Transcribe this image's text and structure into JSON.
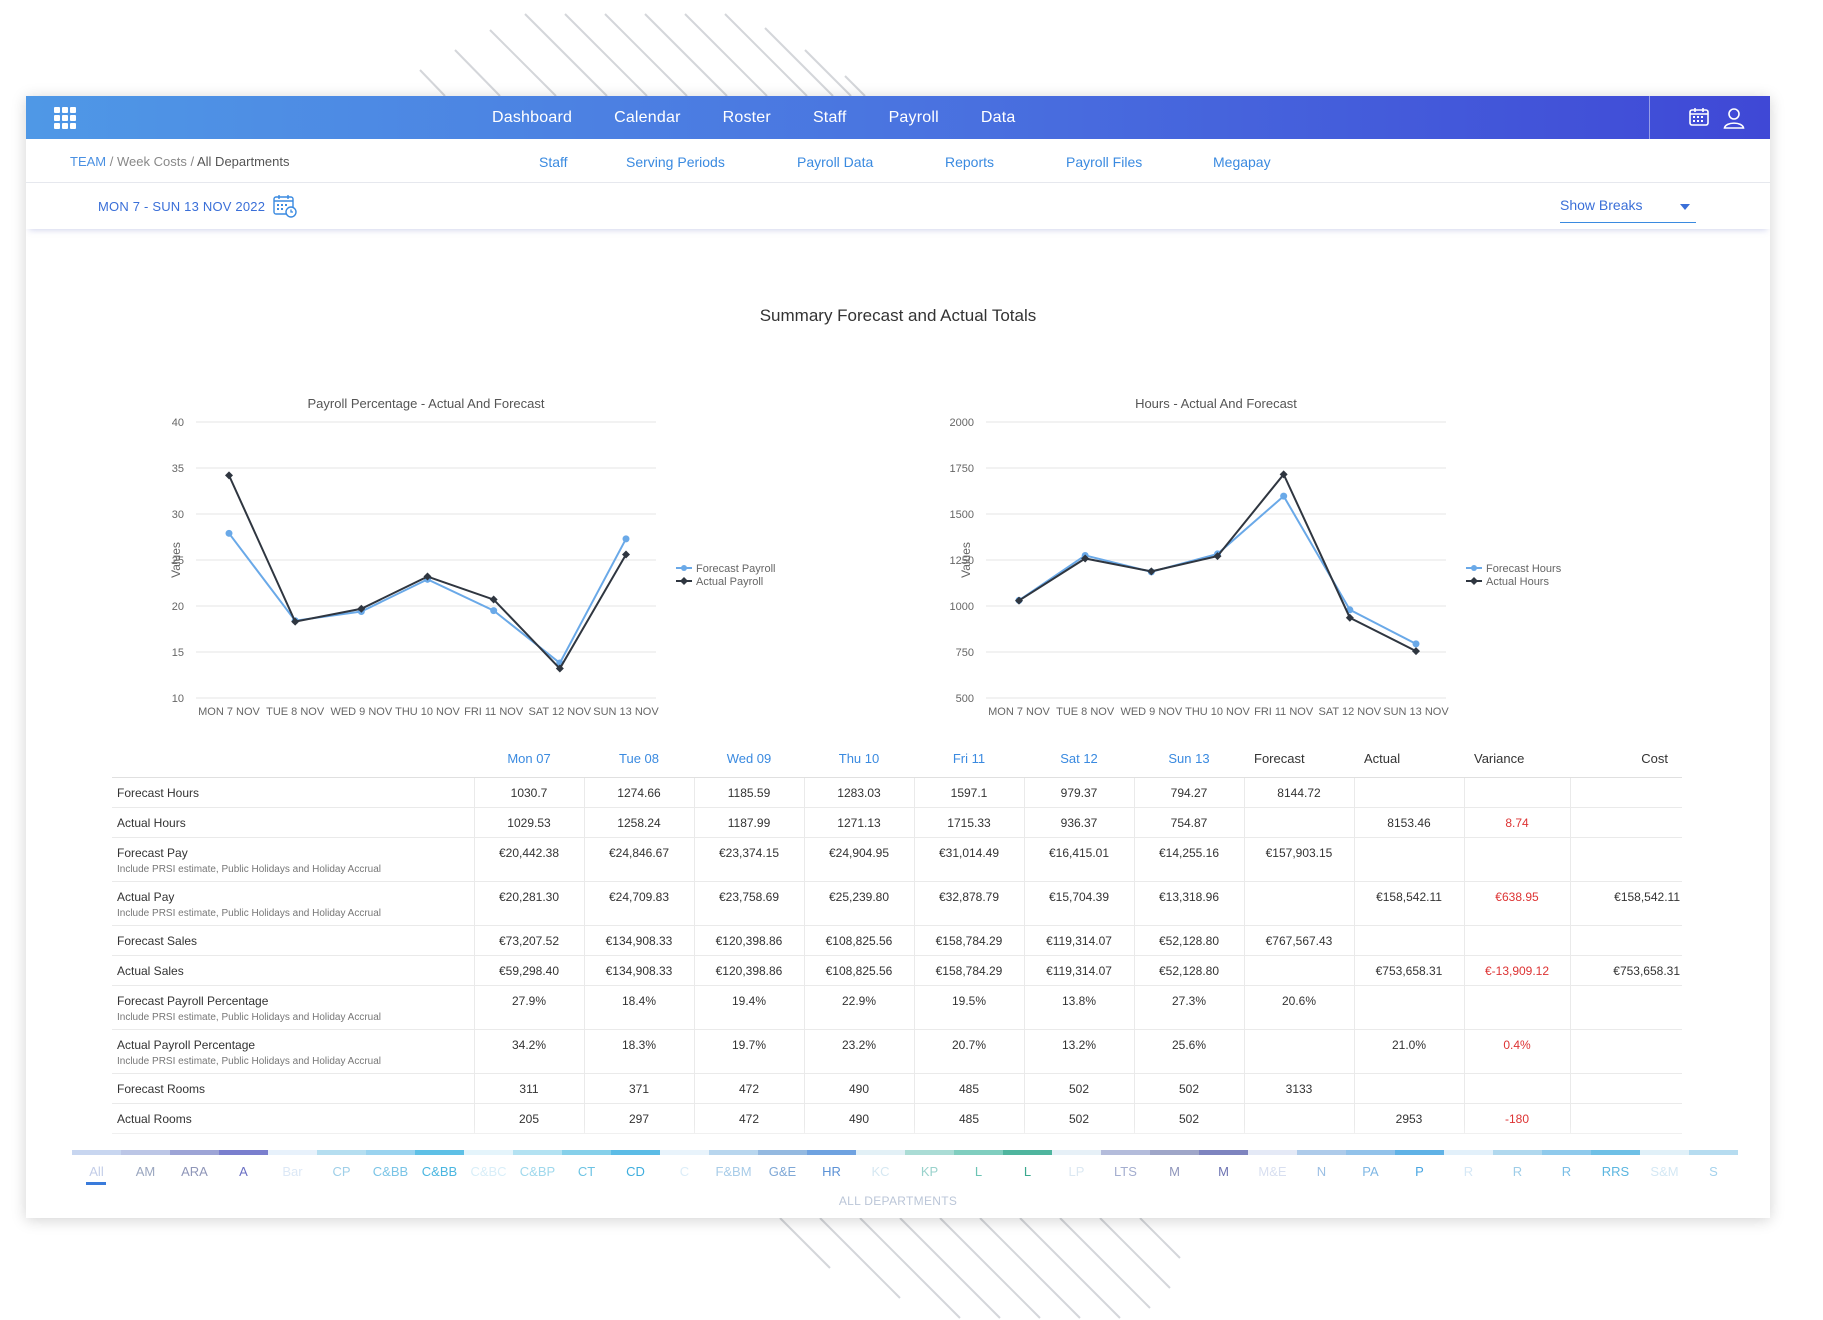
{
  "nav": {
    "items": [
      "Dashboard",
      "Calendar",
      "Roster",
      "Staff",
      "Payroll",
      "Data"
    ]
  },
  "breadcrumb": {
    "team": "TEAM",
    "sep1": "/",
    "middle": "Week Costs",
    "sep2": "/",
    "current": "All Departments"
  },
  "subnav": [
    "Staff",
    "Serving Periods",
    "Payroll Data",
    "Reports",
    "Payroll Files",
    "Megapay"
  ],
  "date_range": "MON 7 - SUN 13 NOV 2022",
  "show_breaks": "Show Breaks",
  "summary_title": "Summary Forecast and Actual Totals",
  "chart_data": [
    {
      "type": "line",
      "title": "Payroll Percentage - Actual And Forecast",
      "ylabel": "Values",
      "xlabel": "",
      "categories": [
        "MON 7 NOV",
        "TUE 8 NOV",
        "WED 9 NOV",
        "THU 10 NOV",
        "FRI 11 NOV",
        "SAT 12 NOV",
        "SUN 13 NOV"
      ],
      "yticks": [
        10,
        15,
        20,
        25,
        30,
        35,
        40
      ],
      "ylim": [
        10,
        40
      ],
      "grid": true,
      "legend": "right",
      "series": [
        {
          "name": "Forecast Payroll",
          "color": "#6aa9e8",
          "marker": "circle",
          "values": [
            27.9,
            18.4,
            19.4,
            22.9,
            19.5,
            13.8,
            27.3
          ]
        },
        {
          "name": "Actual Payroll",
          "color": "#2f3640",
          "marker": "diamond",
          "values": [
            34.2,
            18.3,
            19.7,
            23.2,
            20.7,
            13.2,
            25.6
          ]
        }
      ]
    },
    {
      "type": "line",
      "title": "Hours - Actual And Forecast",
      "ylabel": "Values",
      "xlabel": "",
      "categories": [
        "MON 7 NOV",
        "TUE 8 NOV",
        "WED 9 NOV",
        "THU 10 NOV",
        "FRI 11 NOV",
        "SAT 12 NOV",
        "SUN 13 NOV"
      ],
      "yticks": [
        500,
        750,
        1000,
        1250,
        1500,
        1750,
        2000
      ],
      "ylim": [
        500,
        2000
      ],
      "grid": true,
      "legend": "right",
      "series": [
        {
          "name": "Forecast Hours",
          "color": "#6aa9e8",
          "marker": "circle",
          "values": [
            1030.7,
            1274.66,
            1185.59,
            1283.03,
            1597.1,
            979.37,
            794.27
          ]
        },
        {
          "name": "Actual Hours",
          "color": "#2f3640",
          "marker": "diamond",
          "values": [
            1029.53,
            1258.24,
            1187.99,
            1271.13,
            1715.33,
            936.37,
            754.87
          ]
        }
      ]
    }
  ],
  "table": {
    "headers": {
      "days": [
        "Mon 07",
        "Tue 08",
        "Wed 09",
        "Thu 10",
        "Fri 11",
        "Sat 12",
        "Sun 13"
      ],
      "forecast": "Forecast",
      "actual": "Actual",
      "variance": "Variance",
      "cost": "Cost"
    },
    "rows": [
      {
        "label": "Forecast Hours",
        "sub": "",
        "days": [
          "1030.7",
          "1274.66",
          "1185.59",
          "1283.03",
          "1597.1",
          "979.37",
          "794.27"
        ],
        "forecast": "8144.72",
        "actual": "",
        "variance": "",
        "cost": ""
      },
      {
        "label": "Actual Hours",
        "sub": "",
        "days": [
          "1029.53",
          "1258.24",
          "1187.99",
          "1271.13",
          "1715.33",
          "936.37",
          "754.87"
        ],
        "forecast": "",
        "actual": "8153.46",
        "variance": "8.74",
        "cost": ""
      },
      {
        "label": "Forecast Pay",
        "sub": "Include PRSI estimate, Public Holidays and Holiday Accrual",
        "days": [
          "€20,442.38",
          "€24,846.67",
          "€23,374.15",
          "€24,904.95",
          "€31,014.49",
          "€16,415.01",
          "€14,255.16"
        ],
        "forecast": "€157,903.15",
        "actual": "",
        "variance": "",
        "cost": ""
      },
      {
        "label": "Actual Pay",
        "sub": "Include PRSI estimate, Public Holidays and Holiday Accrual",
        "days": [
          "€20,281.30",
          "€24,709.83",
          "€23,758.69",
          "€25,239.80",
          "€32,878.79",
          "€15,704.39",
          "€13,318.96"
        ],
        "forecast": "",
        "actual": "€158,542.11",
        "variance": "€638.95",
        "cost": "€158,542.11"
      },
      {
        "label": "Forecast Sales",
        "sub": "",
        "days": [
          "€73,207.52",
          "€134,908.33",
          "€120,398.86",
          "€108,825.56",
          "€158,784.29",
          "€119,314.07",
          "€52,128.80"
        ],
        "forecast": "€767,567.43",
        "actual": "",
        "variance": "",
        "cost": ""
      },
      {
        "label": "Actual Sales",
        "sub": "",
        "days": [
          "€59,298.40",
          "€134,908.33",
          "€120,398.86",
          "€108,825.56",
          "€158,784.29",
          "€119,314.07",
          "€52,128.80"
        ],
        "forecast": "",
        "actual": "€753,658.31",
        "variance": "€-13,909.12",
        "cost": "€753,658.31"
      },
      {
        "label": "Forecast Payroll Percentage",
        "sub": "Include PRSI estimate, Public Holidays and Holiday Accrual",
        "days": [
          "27.9%",
          "18.4%",
          "19.4%",
          "22.9%",
          "19.5%",
          "13.8%",
          "27.3%"
        ],
        "forecast": "20.6%",
        "actual": "",
        "variance": "",
        "cost": ""
      },
      {
        "label": "Actual Payroll Percentage",
        "sub": "Include PRSI estimate, Public Holidays and Holiday Accrual",
        "days": [
          "34.2%",
          "18.3%",
          "19.7%",
          "23.2%",
          "20.7%",
          "13.2%",
          "25.6%"
        ],
        "forecast": "",
        "actual": "21.0%",
        "variance": "0.4%",
        "cost": ""
      },
      {
        "label": "Forecast Rooms",
        "sub": "",
        "days": [
          "311",
          "371",
          "472",
          "490",
          "485",
          "502",
          "502"
        ],
        "forecast": "3133",
        "actual": "",
        "variance": "",
        "cost": ""
      },
      {
        "label": "Actual Rooms",
        "sub": "",
        "days": [
          "205",
          "297",
          "472",
          "490",
          "485",
          "502",
          "502"
        ],
        "forecast": "",
        "actual": "2953",
        "variance": "-180",
        "cost": ""
      }
    ]
  },
  "departments": {
    "caption": "ALL DEPARTMENTS",
    "items": [
      {
        "code": "All",
        "color": "#c3cde8",
        "stripe": "#c8d6f0",
        "active": true
      },
      {
        "code": "AM",
        "color": "#9aa6bf",
        "stripe": "#bcc6e6"
      },
      {
        "code": "ARA",
        "color": "#8f96b8",
        "stripe": "#9da4d6"
      },
      {
        "code": "A",
        "color": "#6a6fc4",
        "stripe": "#7a7fce"
      },
      {
        "code": "Bar",
        "color": "#dce8f6",
        "stripe": "#e7f1fb"
      },
      {
        "code": "CP",
        "color": "#9fcfe8",
        "stripe": "#b5def0"
      },
      {
        "code": "C&BB",
        "color": "#7ac4e6",
        "stripe": "#9ad3ef"
      },
      {
        "code": "C&BB",
        "color": "#4ab6e0",
        "stripe": "#5ec0e6"
      },
      {
        "code": "C&BC",
        "color": "#d8eef8",
        "stripe": "#e4f4fb"
      },
      {
        "code": "C&BP",
        "color": "#9fd8ec",
        "stripe": "#b3e2f2"
      },
      {
        "code": "CT",
        "color": "#6cc3e3",
        "stripe": "#86d0ea"
      },
      {
        "code": "CD",
        "color": "#3faede",
        "stripe": "#5cbce6"
      },
      {
        "code": "C",
        "color": "#dcedf8",
        "stripe": "#e8f3fb"
      },
      {
        "code": "F&BM",
        "color": "#a8cce8",
        "stripe": "#b8d6ee"
      },
      {
        "code": "G&E",
        "color": "#7fa8d6",
        "stripe": "#94b9e0"
      },
      {
        "code": "HR",
        "color": "#5c92d6",
        "stripe": "#6fa2e0"
      },
      {
        "code": "KC",
        "color": "#d6e8f2",
        "stripe": "#e2f0f6"
      },
      {
        "code": "KP",
        "color": "#9ad2cc",
        "stripe": "#aadcd5"
      },
      {
        "code": "L",
        "color": "#6cc4b4",
        "stripe": "#80ceBf"
      },
      {
        "code": "L",
        "color": "#3aa88e",
        "stripe": "#4fb59e"
      },
      {
        "code": "LP",
        "color": "#dbe8f2",
        "stripe": "#e6f0f7"
      },
      {
        "code": "LTS",
        "color": "#a4aecf",
        "stripe": "#b4bcdb"
      },
      {
        "code": "M",
        "color": "#8f96bb",
        "stripe": "#9fa6c8"
      },
      {
        "code": "M",
        "color": "#6e74b3",
        "stripe": "#7e84bf"
      },
      {
        "code": "M&E",
        "color": "#d8dff0",
        "stripe": "#e4e9f6"
      },
      {
        "code": "N",
        "color": "#9bbfe4",
        "stripe": "#aecbea"
      },
      {
        "code": "PA",
        "color": "#7fb7e4",
        "stripe": "#92c2ea"
      },
      {
        "code": "P",
        "color": "#4aa6e2",
        "stripe": "#60b2e6"
      },
      {
        "code": "R",
        "color": "#d6e8f6",
        "stripe": "#e2f0fa"
      },
      {
        "code": "R",
        "color": "#9ecde8",
        "stripe": "#b0d8ee"
      },
      {
        "code": "R",
        "color": "#78bde6",
        "stripe": "#8fcaec"
      },
      {
        "code": "RRS",
        "color": "#5bb6e0",
        "stripe": "#6fc0e6"
      },
      {
        "code": "S&M",
        "color": "#d4e8f4",
        "stripe": "#e0f0f8"
      },
      {
        "code": "S",
        "color": "#a4d2ec",
        "stripe": "#b6dcf0"
      }
    ]
  }
}
